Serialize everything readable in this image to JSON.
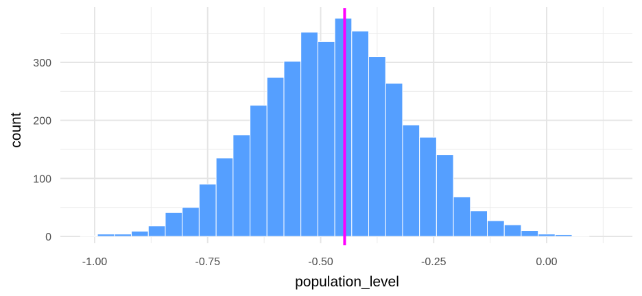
{
  "chart_data": {
    "type": "bar",
    "subtype": "histogram",
    "title": "",
    "xlabel": "population_level",
    "ylabel": "count",
    "xlim": [
      -1.075,
      1.5
    ],
    "ylim": [
      0,
      395
    ],
    "x_ticks": [
      -1.0,
      -0.75,
      -0.5,
      -0.25,
      0.0
    ],
    "x_tick_labels": [
      "-1.00",
      "-0.75",
      "-0.50",
      "-0.25",
      "0.00"
    ],
    "y_ticks": [
      0,
      100,
      200,
      300
    ],
    "y_tick_labels": [
      "0",
      "100",
      "200",
      "300"
    ],
    "grid": true,
    "bin_width": 0.0375,
    "bins": [
      {
        "x": -1.0125,
        "count": 1
      },
      {
        "x": -0.975,
        "count": 4
      },
      {
        "x": -0.9375,
        "count": 4
      },
      {
        "x": -0.9,
        "count": 9
      },
      {
        "x": -0.8625,
        "count": 18
      },
      {
        "x": -0.825,
        "count": 41
      },
      {
        "x": -0.7875,
        "count": 50
      },
      {
        "x": -0.75,
        "count": 90
      },
      {
        "x": -0.7125,
        "count": 135
      },
      {
        "x": -0.675,
        "count": 175
      },
      {
        "x": -0.6375,
        "count": 226
      },
      {
        "x": -0.6,
        "count": 274
      },
      {
        "x": -0.5625,
        "count": 302
      },
      {
        "x": -0.525,
        "count": 352
      },
      {
        "x": -0.4875,
        "count": 336
      },
      {
        "x": -0.45,
        "count": 376
      },
      {
        "x": -0.4125,
        "count": 354
      },
      {
        "x": -0.375,
        "count": 310
      },
      {
        "x": -0.3375,
        "count": 264
      },
      {
        "x": -0.3,
        "count": 192
      },
      {
        "x": -0.2625,
        "count": 171
      },
      {
        "x": -0.225,
        "count": 141
      },
      {
        "x": -0.1875,
        "count": 68
      },
      {
        "x": -0.15,
        "count": 44
      },
      {
        "x": -0.1125,
        "count": 27
      },
      {
        "x": -0.075,
        "count": 20
      },
      {
        "x": -0.0375,
        "count": 10
      },
      {
        "x": 0.0,
        "count": 4
      },
      {
        "x": 0.0375,
        "count": 3
      },
      {
        "x": 0.075,
        "count": 1
      }
    ],
    "reference_line": {
      "x": -0.447,
      "color": "#FF00FF"
    },
    "bar_color": "#559FFF",
    "bar_outline_color": "#FFFFFF"
  }
}
